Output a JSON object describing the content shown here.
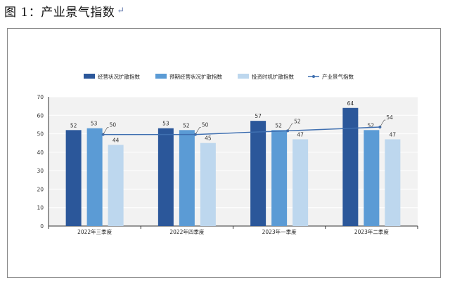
{
  "document": {
    "caption": "图 1：产业景气指数",
    "return_mark": "↵"
  },
  "chart_data": {
    "type": "bar",
    "title": "",
    "xlabel": "",
    "ylabel": "",
    "categories": [
      "2022年三季度",
      "2022年四季度",
      "2023年一季度",
      "2023年二季度"
    ],
    "ylim": [
      0,
      70
    ],
    "yticks": [
      0,
      10,
      20,
      30,
      40,
      50,
      60,
      70
    ],
    "grid": true,
    "legend_position": "top",
    "series": [
      {
        "name": "经营状况扩散指数",
        "type": "bar",
        "color": "#2b579a",
        "values": [
          52,
          53,
          57,
          64
        ]
      },
      {
        "name": "预期经营状况扩散指数",
        "type": "bar",
        "color": "#5b9bd5",
        "values": [
          53,
          52,
          52,
          52
        ]
      },
      {
        "name": "投资时机扩散指数",
        "type": "bar",
        "color": "#bdd7ee",
        "values": [
          44,
          45,
          47,
          47
        ]
      },
      {
        "name": "产业景气指数",
        "type": "line",
        "color": "#3f6fb0",
        "values": [
          50,
          50,
          52,
          54
        ]
      }
    ]
  }
}
